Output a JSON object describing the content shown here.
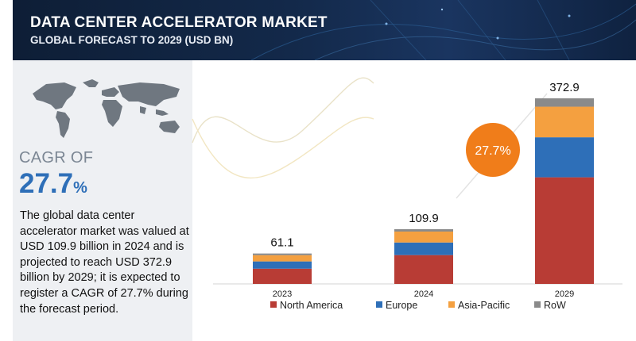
{
  "header": {
    "title": "DATA CENTER ACCELERATOR MARKET",
    "subtitle": "GLOBAL FORECAST TO 2029 (USD BN)"
  },
  "left_panel": {
    "cagr_label": "CAGR OF",
    "cagr_value": "27.7",
    "cagr_unit": "%",
    "description": "The global data center accelerator market was valued at USD 109.9 billion in 2024 and is projected to reach USD 372.9 billion by 2029; it is expected to register a CAGR of 27.7% during the forecast period."
  },
  "colors": {
    "north_america": "#b83c35",
    "europe": "#2e6fb8",
    "asia_pacific": "#f4a040",
    "row": "#8a8a8a",
    "badge": "#f07d1a"
  },
  "chart_data": {
    "type": "bar",
    "stacked": true,
    "categories": [
      "2023",
      "2024",
      "2029"
    ],
    "totals": [
      "61.1",
      "109.9",
      "372.9"
    ],
    "series": [
      {
        "name": "North America",
        "values": [
          30.6,
          57.9,
          214.2
        ]
      },
      {
        "name": "Europe",
        "values": [
          14.6,
          25.3,
          80.4
        ]
      },
      {
        "name": "Asia-Pacific",
        "values": [
          12.5,
          22.0,
          61.5
        ]
      },
      {
        "name": "RoW",
        "values": [
          3.4,
          4.7,
          16.8
        ]
      }
    ],
    "ylim": [
      0,
      372.9
    ],
    "annotation": "27.7%",
    "legend_position": "bottom"
  }
}
